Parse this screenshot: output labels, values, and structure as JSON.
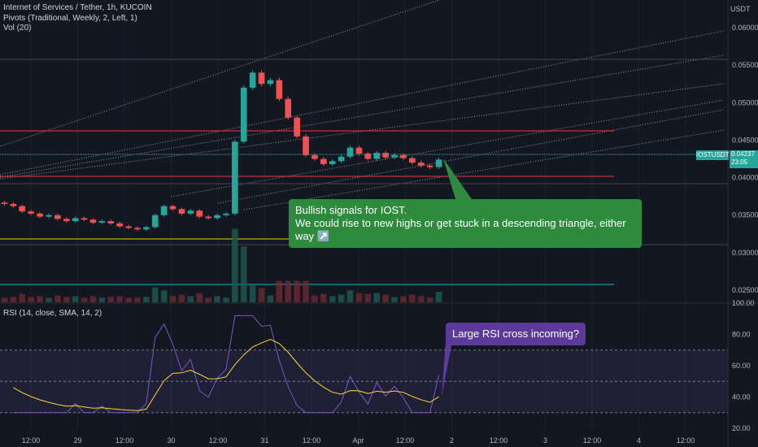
{
  "header": {
    "symbol_line": "Internet of Services / Tether, 1h, KUCOIN",
    "pivots_line": "Pivots (Traditional, Weekly, 2, Left, 1)",
    "vol_line": "Vol (20)",
    "rsi_line": "RSI (14, close, SMA, 14, 2)"
  },
  "price_axis": {
    "currency": "USDT",
    "ticks": [
      "0.06000",
      "0.05500",
      "0.05000",
      "0.04500",
      "0.04000",
      "0.03500",
      "0.03000",
      "0.02500"
    ]
  },
  "rsi_axis": {
    "ticks": [
      "100.00",
      "80.00",
      "60.00",
      "40.00",
      "20.00"
    ]
  },
  "time_axis": {
    "ticks": [
      "12:00",
      "29",
      "12:00",
      "30",
      "12:00",
      "31",
      "12:00",
      "Apr",
      "12:00",
      "2",
      "12:00",
      "3",
      "12:00",
      "4",
      "12:00"
    ]
  },
  "price_tag": {
    "symbol": "IOSTUSDT",
    "price": "0.04237",
    "countdown": "23:05"
  },
  "callouts": {
    "bullish_line1": "Bullish signals for IOST.",
    "bullish_line2": "We could rise to new highs or get stuck in a descending triangle, either way ↗️",
    "rsi_note": "Large RSI cross incoming?"
  },
  "colors": {
    "background": "#131722",
    "up": "#26a69a",
    "down": "#ef5350",
    "pivot_red": "#f23645",
    "pivot_yellow": "#e5d600",
    "pivot_teal": "#00bcd4",
    "rsi_line": "#7e57c2",
    "rsi_sma": "#fdd835",
    "callout_green": "#2e8b3e",
    "callout_purple": "#5b3a99"
  },
  "chart_data": {
    "type": "candlestick",
    "series": [
      {
        "name": "IOSTUSDT",
        "close": [
          0.0365,
          0.0362,
          0.0355,
          0.0352,
          0.0348,
          0.035,
          0.0345,
          0.0342,
          0.0346,
          0.0344,
          0.034,
          0.0342,
          0.0339,
          0.0335,
          0.0333,
          0.0331,
          0.0334,
          0.035,
          0.0362,
          0.0358,
          0.0352,
          0.0356,
          0.0348,
          0.0346,
          0.035,
          0.0352,
          0.0448,
          0.052,
          0.054,
          0.0525,
          0.053,
          0.0505,
          0.048,
          0.0455,
          0.043,
          0.0425,
          0.0418,
          0.0422,
          0.0428,
          0.044,
          0.0432,
          0.0425,
          0.0433,
          0.0427,
          0.043,
          0.0426,
          0.042,
          0.0416,
          0.0414,
          0.0424
        ]
      }
    ],
    "rsi": {
      "name": "RSI",
      "ylim": [
        20,
        100
      ],
      "bands": [
        30,
        50,
        70
      ]
    },
    "ylim": [
      0.0235,
      0.0605
    ]
  }
}
